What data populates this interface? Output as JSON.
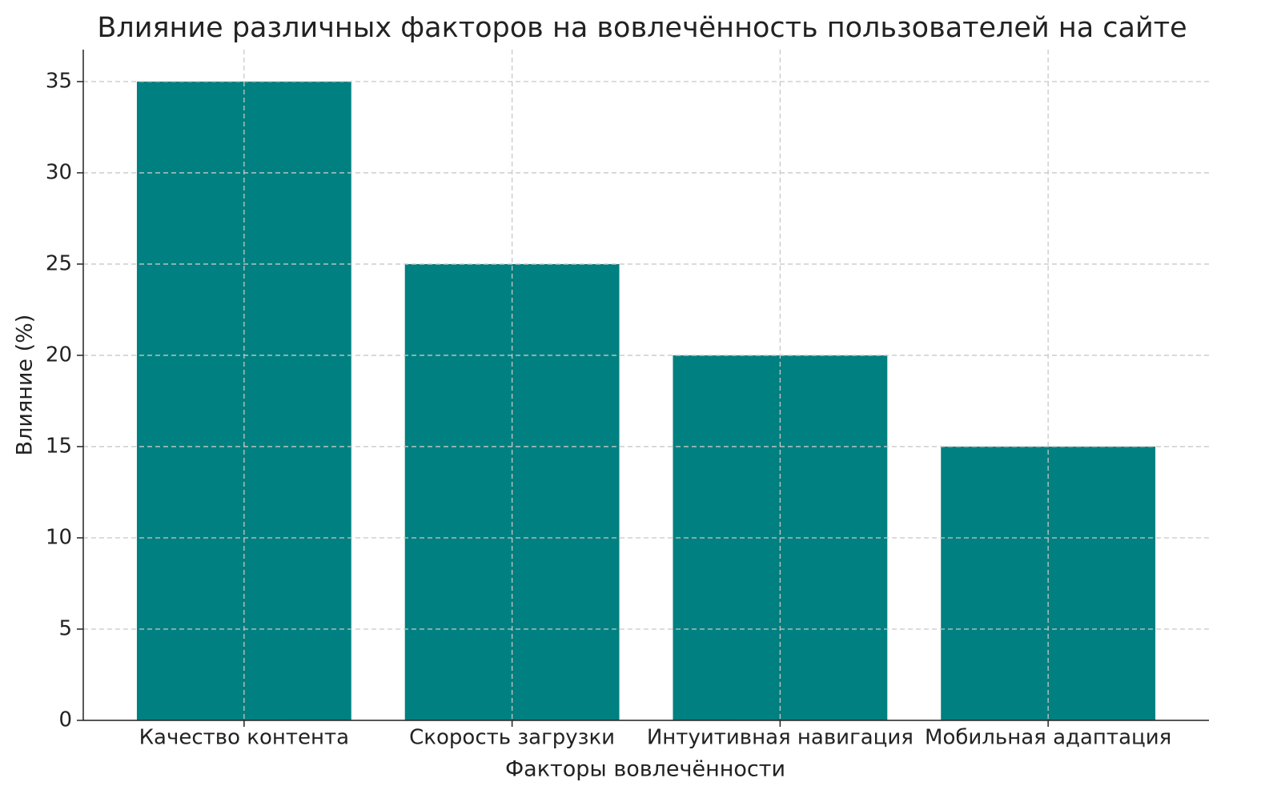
{
  "chart_data": {
    "type": "bar",
    "title": "Влияние различных факторов на вовлечённость пользователей на сайте",
    "x_label": "Факторы вовлечённости",
    "y_label": "Влияние (%)",
    "categories": [
      "Качество контента",
      "Скорость загрузки",
      "Интуитивная навигация",
      "Мобильная адаптация"
    ],
    "values": [
      35,
      25,
      20,
      15
    ],
    "color": "#008080",
    "ylim": [
      0,
      36.75
    ],
    "yticks": [
      0,
      5,
      10,
      15,
      20,
      25,
      30,
      35
    ],
    "grid": true
  }
}
